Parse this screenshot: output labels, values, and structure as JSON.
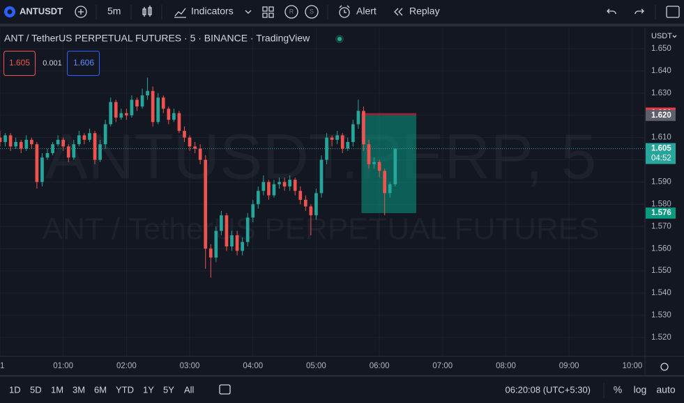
{
  "toolbar": {
    "symbol": "ANTUSDT",
    "interval": "5m",
    "indicators": "Indicators",
    "r": "R",
    "s": "S",
    "alert": "Alert",
    "replay": "Replay"
  },
  "legend": {
    "title": "ANT / TetherUS PERPETUAL FUTURES · 5 · BINANCE · TradingView",
    "sell": "1.605",
    "spread": "0.001",
    "buy": "1.606"
  },
  "watermark": {
    "symbol": "ANTUSDT.PERP, 5",
    "description": "ANT / TetherUS PERPETUAL FUTURES"
  },
  "price_axis": {
    "currency": "USDT"
  },
  "chart_data": {
    "type": "candlestick",
    "up_color": "#26a69a",
    "down_color": "#ef5350",
    "grid": true,
    "x": [
      0,
      5,
      10,
      15,
      20,
      25,
      30,
      35,
      40,
      45,
      50,
      55,
      60,
      65,
      70,
      75,
      80,
      85,
      90,
      95,
      100,
      105,
      110,
      115,
      120,
      125,
      130,
      135,
      140,
      145,
      150,
      155,
      160,
      165,
      170,
      175,
      180,
      185,
      190,
      195,
      200,
      205,
      210,
      215,
      220,
      225,
      230,
      235,
      240,
      245,
      250,
      255,
      260,
      265,
      270,
      275,
      280,
      285,
      290,
      295,
      300,
      305,
      310,
      315,
      320,
      325,
      330,
      335,
      340,
      345,
      350,
      355,
      360,
      365,
      370,
      375
    ],
    "open": [
      1.61,
      1.608,
      1.611,
      1.606,
      1.608,
      1.605,
      1.609,
      1.607,
      1.59,
      1.601,
      1.603,
      1.607,
      1.609,
      1.606,
      1.601,
      1.607,
      1.611,
      1.609,
      1.612,
      1.6,
      1.607,
      1.616,
      1.626,
      1.619,
      1.621,
      1.62,
      1.627,
      1.624,
      1.629,
      1.631,
      1.617,
      1.628,
      1.623,
      1.618,
      1.621,
      1.613,
      1.61,
      1.606,
      1.605,
      1.6,
      1.56,
      1.556,
      1.568,
      1.575,
      1.561,
      1.566,
      1.559,
      1.563,
      1.574,
      1.58,
      1.586,
      1.59,
      1.584,
      1.589,
      1.59,
      1.588,
      1.591,
      1.586,
      1.582,
      1.579,
      1.575,
      1.585,
      1.6,
      1.61,
      1.609,
      1.611,
      1.605,
      1.608,
      1.616,
      1.622,
      1.607,
      1.598,
      1.599,
      1.595,
      1.585,
      1.589
    ],
    "high": [
      1.613,
      1.612,
      1.612,
      1.61,
      1.609,
      1.611,
      1.61,
      1.608,
      1.603,
      1.605,
      1.608,
      1.611,
      1.61,
      1.607,
      1.609,
      1.613,
      1.612,
      1.614,
      1.613,
      1.609,
      1.618,
      1.628,
      1.627,
      1.623,
      1.623,
      1.629,
      1.628,
      1.632,
      1.637,
      1.633,
      1.63,
      1.629,
      1.624,
      1.623,
      1.622,
      1.615,
      1.611,
      1.608,
      1.607,
      1.602,
      1.562,
      1.57,
      1.577,
      1.576,
      1.568,
      1.568,
      1.565,
      1.576,
      1.582,
      1.588,
      1.593,
      1.591,
      1.591,
      1.592,
      1.592,
      1.593,
      1.592,
      1.588,
      1.584,
      1.58,
      1.587,
      1.602,
      1.612,
      1.611,
      1.613,
      1.612,
      1.61,
      1.618,
      1.627,
      1.624,
      1.609,
      1.601,
      1.6,
      1.596,
      1.59,
      1.605
    ],
    "low": [
      1.606,
      1.606,
      1.604,
      1.605,
      1.603,
      1.604,
      1.605,
      1.587,
      1.588,
      1.6,
      1.602,
      1.606,
      1.604,
      1.599,
      1.6,
      1.606,
      1.607,
      1.608,
      1.598,
      1.599,
      1.605,
      1.615,
      1.617,
      1.618,
      1.618,
      1.619,
      1.622,
      1.623,
      1.627,
      1.615,
      1.616,
      1.621,
      1.616,
      1.617,
      1.612,
      1.608,
      1.604,
      1.603,
      1.598,
      1.551,
      1.547,
      1.554,
      1.566,
      1.559,
      1.559,
      1.557,
      1.557,
      1.561,
      1.572,
      1.578,
      1.584,
      1.582,
      1.583,
      1.587,
      1.586,
      1.586,
      1.584,
      1.58,
      1.577,
      1.566,
      1.573,
      1.583,
      1.598,
      1.606,
      1.607,
      1.603,
      1.604,
      1.606,
      1.614,
      1.604,
      1.596,
      1.596,
      1.592,
      1.575,
      1.583,
      1.588
    ],
    "close": [
      1.608,
      1.611,
      1.606,
      1.608,
      1.605,
      1.609,
      1.607,
      1.59,
      1.601,
      1.603,
      1.607,
      1.609,
      1.606,
      1.601,
      1.607,
      1.611,
      1.609,
      1.612,
      1.6,
      1.607,
      1.616,
      1.626,
      1.619,
      1.621,
      1.62,
      1.627,
      1.624,
      1.629,
      1.631,
      1.617,
      1.628,
      1.623,
      1.618,
      1.621,
      1.613,
      1.61,
      1.606,
      1.605,
      1.6,
      1.56,
      1.556,
      1.568,
      1.575,
      1.561,
      1.566,
      1.559,
      1.563,
      1.574,
      1.58,
      1.586,
      1.59,
      1.584,
      1.589,
      1.59,
      1.588,
      1.591,
      1.586,
      1.582,
      1.579,
      1.575,
      1.585,
      1.6,
      1.61,
      1.609,
      1.611,
      1.605,
      1.608,
      1.616,
      1.622,
      1.607,
      1.598,
      1.599,
      1.595,
      1.585,
      1.589,
      1.605
    ],
    "xlim": [
      0,
      612
    ],
    "xticks": [
      {
        "value": 0,
        "label": "1"
      },
      {
        "value": 60,
        "label": "01:00"
      },
      {
        "value": 120,
        "label": "02:00"
      },
      {
        "value": 180,
        "label": "03:00"
      },
      {
        "value": 240,
        "label": "04:00"
      },
      {
        "value": 300,
        "label": "05:00"
      },
      {
        "value": 360,
        "label": "06:00"
      },
      {
        "value": 420,
        "label": "07:00"
      },
      {
        "value": 480,
        "label": "08:00"
      },
      {
        "value": 540,
        "label": "09:00"
      },
      {
        "value": 600,
        "label": "10:00"
      }
    ],
    "ylim": [
      1.5115,
      1.6594
    ],
    "yticks": [
      {
        "value": 1.65,
        "label": "1.650"
      },
      {
        "value": 1.64,
        "label": "1.640"
      },
      {
        "value": 1.63,
        "label": "1.630"
      },
      {
        "value": 1.62,
        "label": "1.620"
      },
      {
        "value": 1.61,
        "label": "1.610"
      },
      {
        "value": 1.6,
        "label": "1.600"
      },
      {
        "value": 1.59,
        "label": "1.590"
      },
      {
        "value": 1.58,
        "label": "1.580"
      },
      {
        "value": 1.57,
        "label": "1.570"
      },
      {
        "value": 1.56,
        "label": "1.560"
      },
      {
        "value": 1.55,
        "label": "1.550"
      },
      {
        "value": 1.54,
        "label": "1.540"
      },
      {
        "value": 1.53,
        "label": "1.530"
      },
      {
        "value": 1.52,
        "label": "1.520"
      }
    ],
    "last_price": {
      "value": 1.605,
      "label": "1.605",
      "countdown": "04:52",
      "color": "#26a69a"
    },
    "position": {
      "x_start": 343,
      "x_end": 395,
      "stop": 1.621,
      "entry": {
        "value": 1.62,
        "label": "1.620"
      },
      "target": 1.576,
      "stop_color": "#f23645",
      "entry_color": "#5d606b",
      "target_color": "#089981"
    }
  },
  "bottom_bar": {
    "ranges": [
      "1D",
      "5D",
      "1M",
      "3M",
      "6M",
      "YTD",
      "1Y",
      "5Y",
      "All"
    ],
    "clock": "06:20:08 (UTC+5:30)",
    "percent": "%",
    "log": "log",
    "auto": "auto"
  }
}
